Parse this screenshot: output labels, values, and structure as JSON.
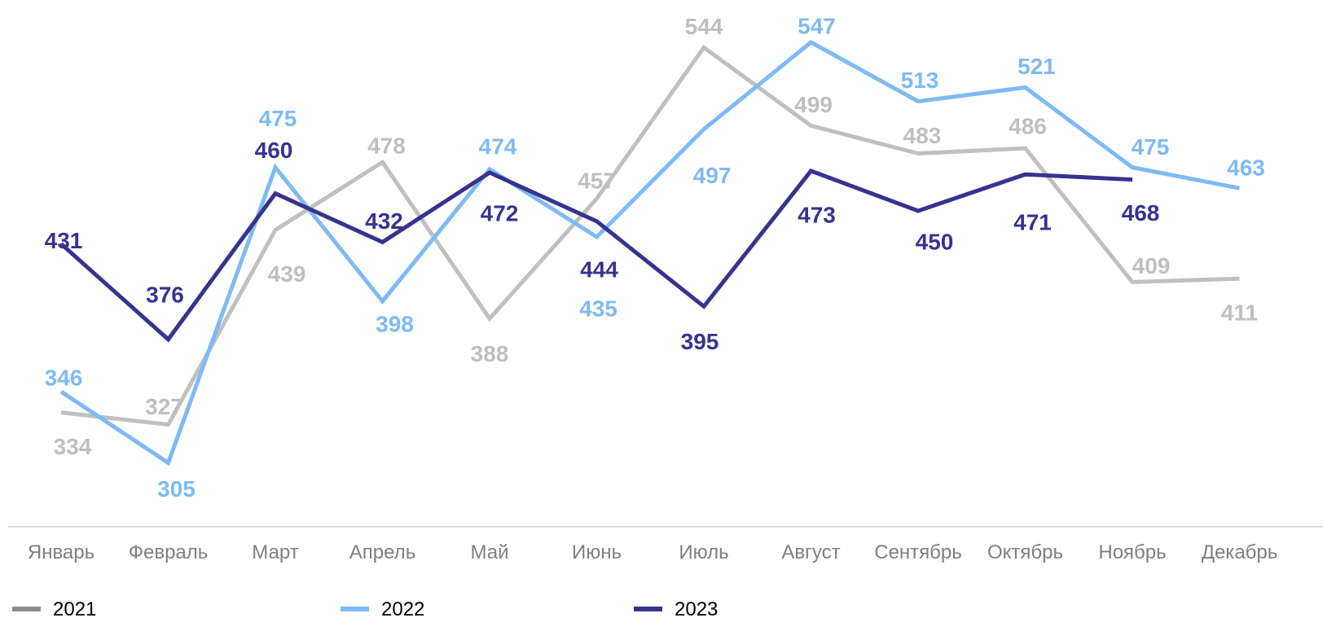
{
  "chart_data": {
    "type": "line",
    "title": "",
    "xlabel": "",
    "ylabel": "",
    "categories": [
      "Январь",
      "Февраль",
      "Март",
      "Апрель",
      "Май",
      "Июнь",
      "Июль",
      "Август",
      "Сентябрь",
      "Октябрь",
      "Ноябрь",
      "Декабрь"
    ],
    "series": [
      {
        "name": "2021",
        "color": "#c0c0c0",
        "values": [
          334,
          327,
          439,
          478,
          388,
          457,
          544,
          499,
          483,
          486,
          409,
          411
        ]
      },
      {
        "name": "2022",
        "color": "#7fbaf5",
        "values": [
          346,
          305,
          475,
          398,
          474,
          435,
          497,
          547,
          513,
          521,
          475,
          463
        ]
      },
      {
        "name": "2023",
        "color": "#38328f",
        "values": [
          431,
          376,
          460,
          432,
          472,
          444,
          395,
          473,
          450,
          471,
          468,
          null
        ]
      }
    ],
    "data_labels": true,
    "axis_line_visible": true,
    "y_axis_visible": false,
    "grid": false,
    "legend": {
      "position": "bottom-left",
      "legend_swatch_color_2021": "#8c8c8c"
    }
  }
}
